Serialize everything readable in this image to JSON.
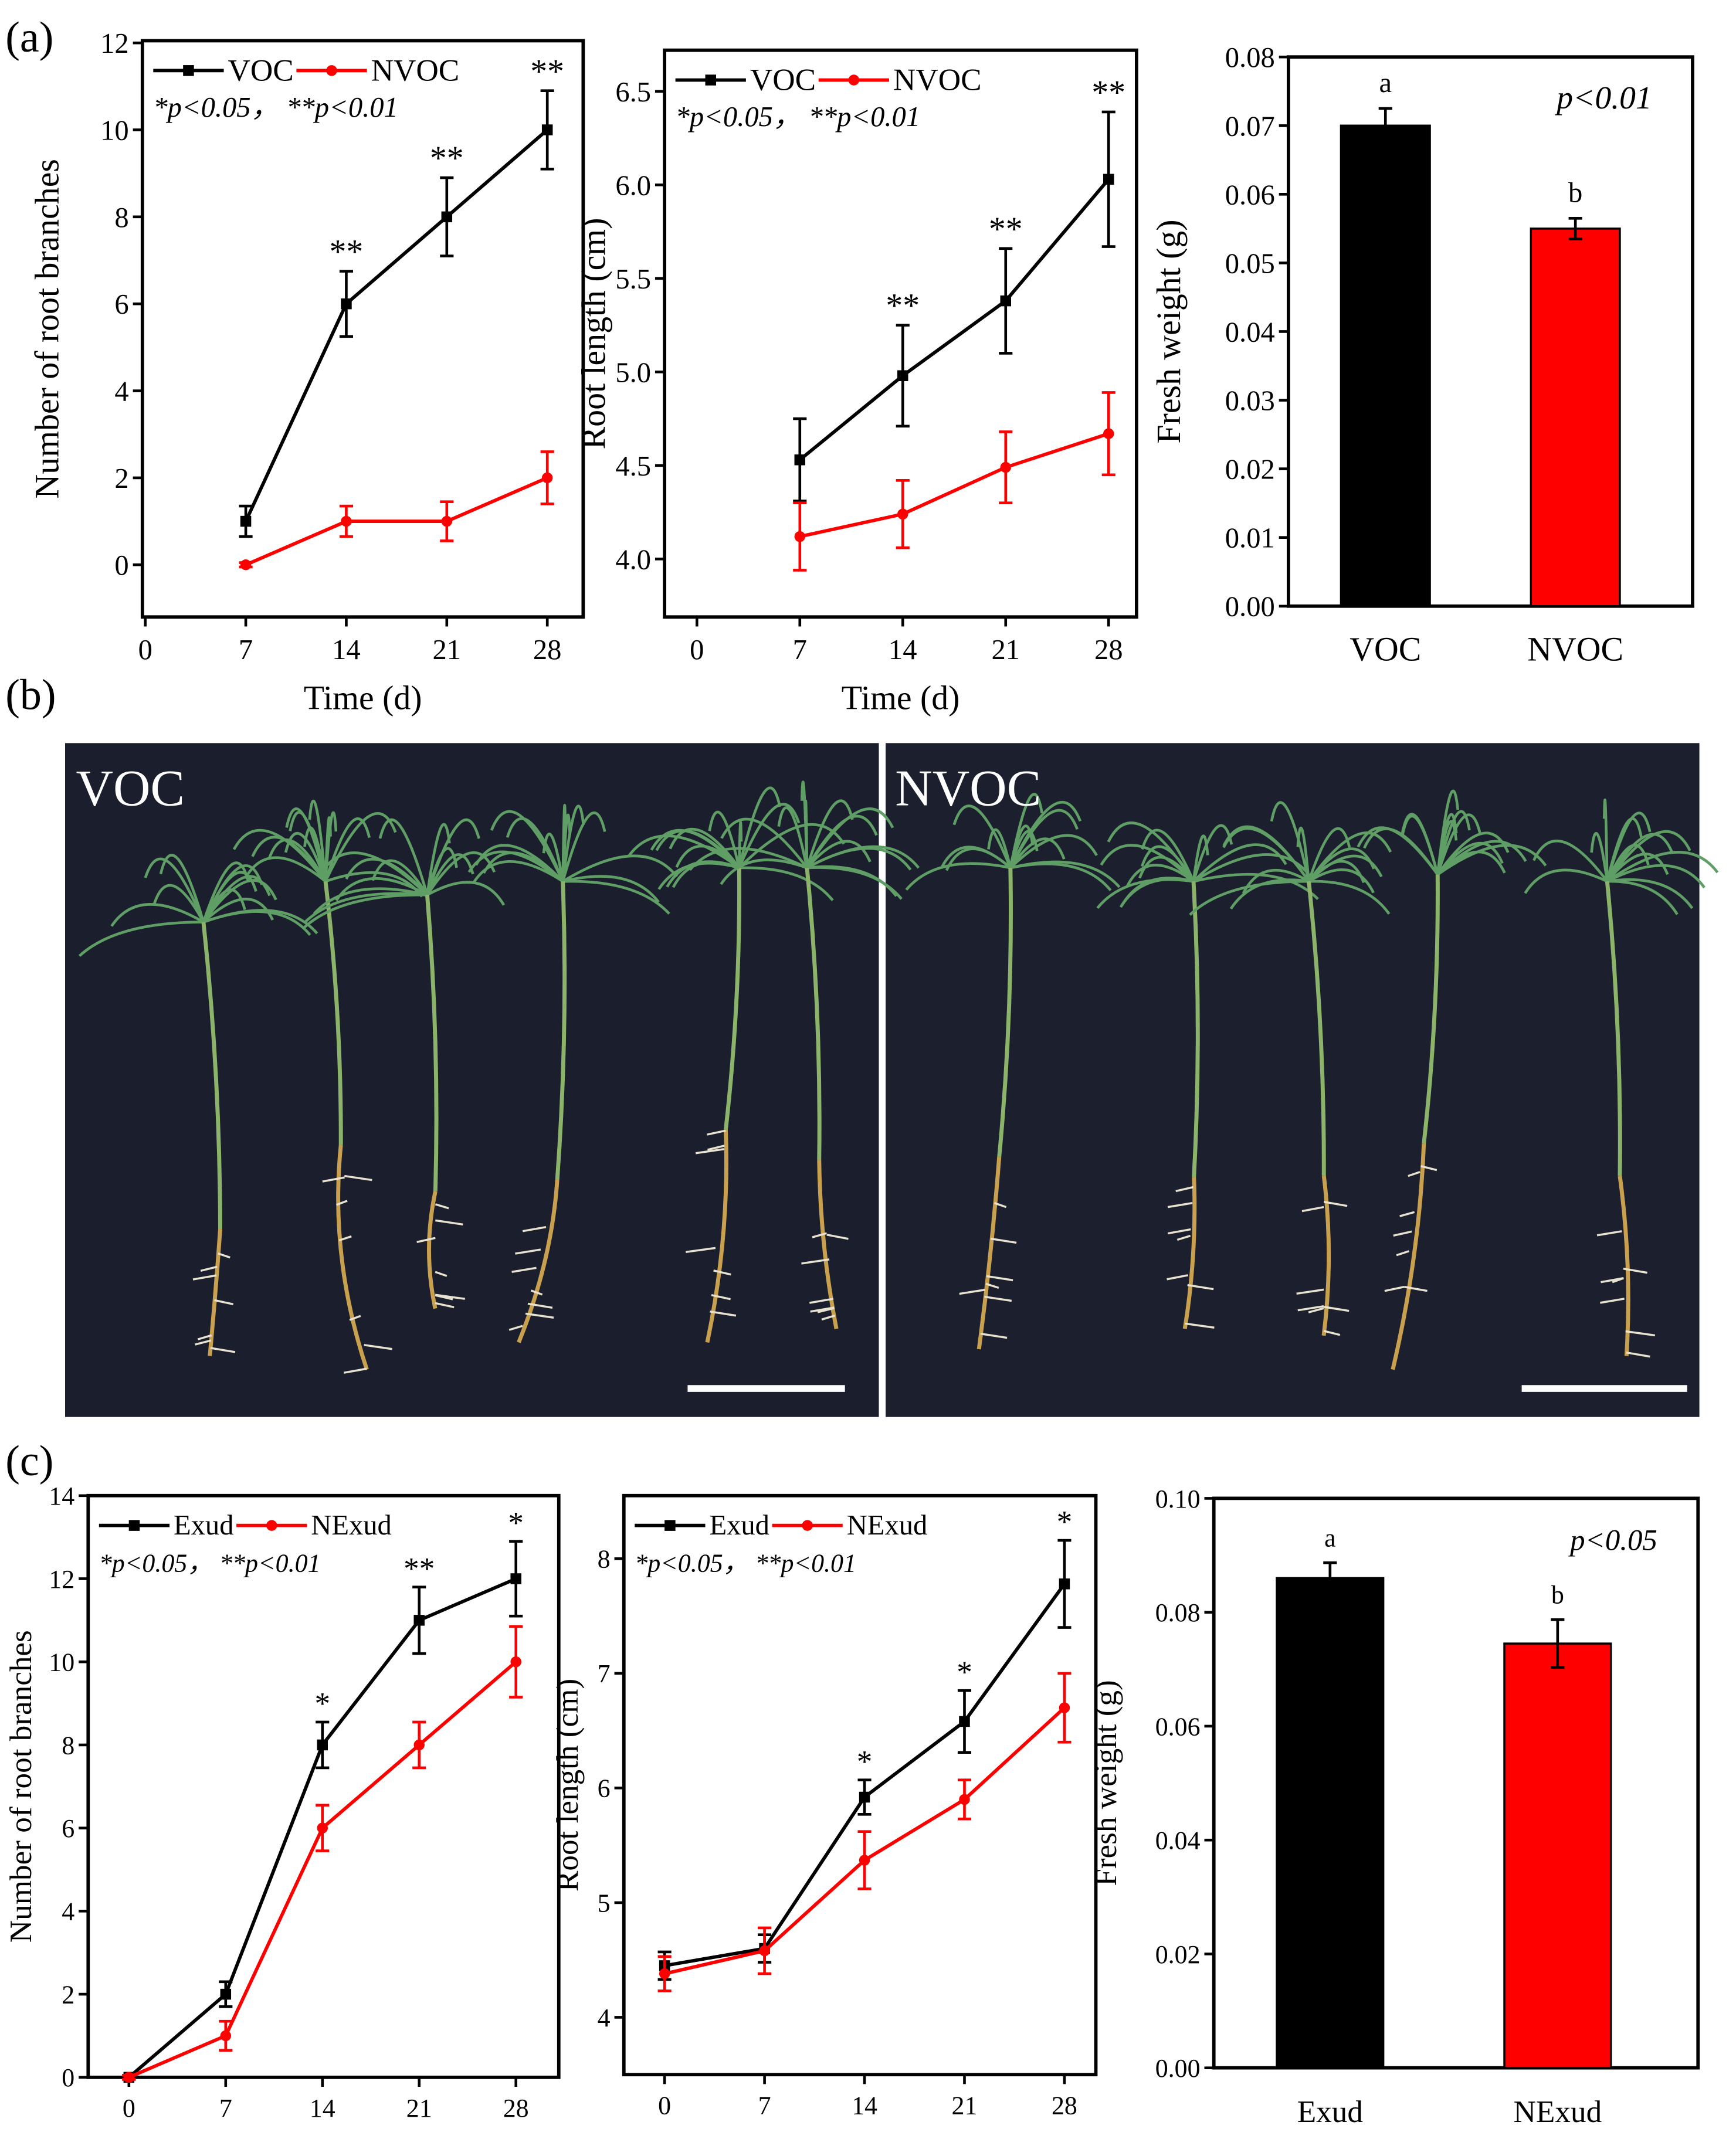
{
  "panel_labels": [
    "(a)",
    "(b)",
    "(c)"
  ],
  "photo": {
    "labels": [
      "VOC",
      "NVOC"
    ]
  },
  "chart_data": [
    {
      "type": "line",
      "x": [
        7,
        14,
        21,
        28
      ],
      "xlim": [
        -0.2,
        30.5
      ],
      "xticks": [
        0,
        7,
        14,
        21,
        28
      ],
      "ylim": [
        -1.2,
        12.05
      ],
      "yticks": [
        0,
        2,
        4,
        6,
        8,
        10,
        12
      ],
      "x_label": "Time (d)",
      "y_label": "Number of root branches",
      "note": "*p<0.05，  **p<0.01",
      "series": [
        {
          "name": "VOC",
          "color": "#000000",
          "values": [
            1,
            6,
            8,
            10
          ],
          "errors": [
            0.35,
            0.75,
            0.9,
            0.9
          ],
          "significance": [
            null,
            "**",
            "**",
            "**"
          ]
        },
        {
          "name": "NVOC",
          "color": "#ff0000",
          "values": [
            0,
            1,
            1,
            2
          ],
          "errors": [
            0.05,
            0.35,
            0.45,
            0.6
          ]
        }
      ]
    },
    {
      "type": "line",
      "x": [
        7,
        14,
        21,
        28
      ],
      "xlim": [
        -2.2,
        29.9
      ],
      "xticks": [
        0,
        7,
        14,
        21,
        28
      ],
      "ylim": [
        3.69,
        6.72
      ],
      "yticks": [
        {
          "value": 4,
          "label": "4.0"
        },
        4.5,
        {
          "value": 5,
          "label": "5.0"
        },
        5.5,
        {
          "value": 6,
          "label": "6.0"
        },
        6.5
      ],
      "x_label": "Time (d)",
      "y_label": "Root length (cm)",
      "note": "*p<0.05，  **p<0.01",
      "series": [
        {
          "name": "VOC",
          "color": "#000000",
          "values": [
            4.53,
            4.98,
            5.38,
            6.03
          ],
          "errors": [
            0.22,
            0.27,
            0.28,
            0.36
          ],
          "significance": [
            null,
            "**",
            "**",
            "**"
          ]
        },
        {
          "name": "NVOC",
          "color": "#ff0000",
          "values": [
            4.12,
            4.24,
            4.49,
            4.67
          ],
          "errors": [
            0.18,
            0.18,
            0.19,
            0.22
          ]
        }
      ]
    },
    {
      "type": "bar",
      "categories": [
        "VOC",
        "NVOC"
      ],
      "values": [
        0.07,
        0.055
      ],
      "errors": [
        0.0025,
        0.0015
      ],
      "colors": [
        "#000000",
        "#ff0000"
      ],
      "letters": [
        "a",
        "b"
      ],
      "note": "p<0.01",
      "y_label": "Fresh weight (g)",
      "ylim": [
        0,
        0.08
      ],
      "yticks": [
        {
          "value": 0,
          "label": "0.00"
        },
        0.01,
        0.02,
        0.03,
        0.04,
        0.05,
        0.06,
        0.07,
        0.08
      ]
    },
    {
      "type": "line",
      "x": [
        0,
        7,
        14,
        21,
        28
      ],
      "xlim": [
        -2.95,
        31.1
      ],
      "xticks": [
        0,
        7,
        14,
        21,
        28
      ],
      "ylim": [
        0,
        14
      ],
      "yticks": [
        0,
        2,
        4,
        6,
        8,
        10,
        12,
        14
      ],
      "y_label": "Number of root branches",
      "note": "*p<0.05，  **p<0.01",
      "series": [
        {
          "name": "Exud",
          "color": "#000000",
          "values": [
            0,
            2,
            8,
            11,
            12
          ],
          "errors": [
            0.05,
            0.3,
            0.55,
            0.8,
            0.9
          ],
          "significance": [
            null,
            null,
            "*",
            "**",
            "*"
          ]
        },
        {
          "name": "NExud",
          "color": "#ff0000",
          "values": [
            0,
            1,
            6,
            8,
            10
          ],
          "errors": [
            0.05,
            0.35,
            0.55,
            0.55,
            0.85
          ]
        }
      ]
    },
    {
      "type": "line",
      "x": [
        0,
        7,
        14,
        21,
        28
      ],
      "xlim": [
        -2.85,
        30.2
      ],
      "xticks": [
        0,
        7,
        14,
        21,
        28
      ],
      "ylim": [
        3.5,
        8.55
      ],
      "yticks": [
        4,
        5,
        6,
        7,
        8
      ],
      "y_label": "Root length (cm)",
      "note": "*p<0.05，  **p<0.01",
      "series": [
        {
          "name": "Exud",
          "color": "#000000",
          "values": [
            4.45,
            4.6,
            5.92,
            6.58,
            7.78
          ],
          "errors": [
            0.12,
            0.12,
            0.15,
            0.27,
            0.38
          ],
          "significance": [
            null,
            null,
            "*",
            "*",
            "*"
          ]
        },
        {
          "name": "NExud",
          "color": "#ff0000",
          "values": [
            4.38,
            4.58,
            5.37,
            5.9,
            6.7
          ],
          "errors": [
            0.15,
            0.2,
            0.25,
            0.17,
            0.3
          ]
        }
      ]
    },
    {
      "type": "bar",
      "categories": [
        "Exud",
        "NExud"
      ],
      "values": [
        0.086,
        0.0745
      ],
      "errors": [
        0.0027,
        0.0042
      ],
      "colors": [
        "#000000",
        "#ff0000"
      ],
      "letters": [
        "a",
        "b"
      ],
      "note": "p<0.05",
      "y_label": "Fresh weight (g)",
      "ylim": [
        0,
        0.1
      ],
      "yticks": [
        {
          "value": 0,
          "label": "0.00"
        },
        0.02,
        0.04,
        0.06,
        0.08,
        {
          "value": 0.1,
          "label": "0.10"
        }
      ]
    }
  ]
}
